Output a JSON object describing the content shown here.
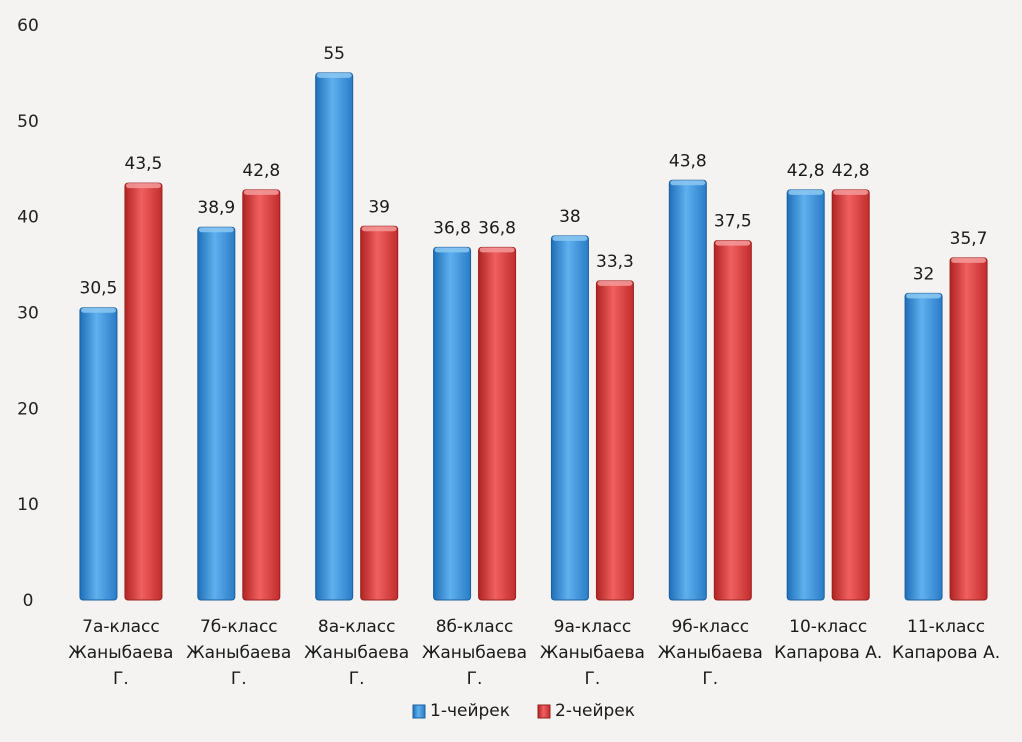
{
  "chart_data": {
    "type": "bar",
    "title": "",
    "xlabel": "",
    "ylabel": "",
    "ylim": [
      0,
      60
    ],
    "yticks": [
      0,
      10,
      20,
      30,
      40,
      50,
      60
    ],
    "grid": false,
    "legend_position": "bottom",
    "categories": [
      [
        "7а-класс",
        "Жаныбаева",
        "Г."
      ],
      [
        "7б-класс",
        "Жаныбаева",
        "Г."
      ],
      [
        "8а-класс",
        "Жаныбаева",
        "Г."
      ],
      [
        "8б-класс",
        "Жаныбаева",
        "Г."
      ],
      [
        "9а-класс",
        "Жаныбаева",
        "Г."
      ],
      [
        "9б-класс",
        "Жаныбаева",
        "Г."
      ],
      [
        "10-класс",
        "Капарова А."
      ],
      [
        "11-класс",
        "Капарова А."
      ]
    ],
    "series": [
      {
        "name": "1-чейрек",
        "color": "#3b8fd6",
        "values": [
          30.5,
          38.9,
          55,
          36.8,
          38,
          43.8,
          42.8,
          32
        ],
        "labels": [
          "30,5",
          "38,9",
          "55",
          "36,8",
          "38",
          "43,8",
          "42,8",
          "32"
        ]
      },
      {
        "name": "2-чейрек",
        "color": "#d63a3a",
        "values": [
          43.5,
          42.8,
          39,
          36.8,
          33.3,
          37.5,
          42.8,
          35.7
        ],
        "labels": [
          "43,5",
          "42,8",
          "39",
          "36,8",
          "33,3",
          "37,5",
          "42,8",
          "35,7"
        ]
      }
    ]
  }
}
